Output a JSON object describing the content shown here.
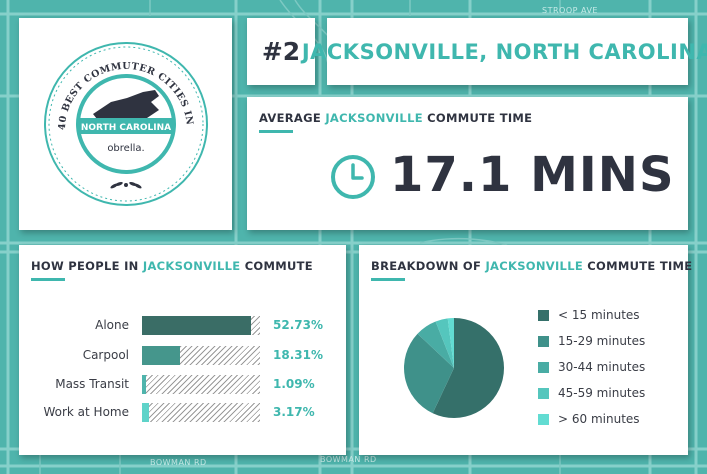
{
  "streets": {
    "stroop": "STROOP AVE",
    "bowman_1": "BOWMAN RD",
    "bowman_2": "BOWMAN RD"
  },
  "badge": {
    "arc_text": "40 BEST COMMUTER CITIES IN NORTH CAROLINA",
    "state": "NORTH CAROLINA",
    "brand": "obrella."
  },
  "header": {
    "rank": "#2",
    "city": "JACKSONVILLE, NORTH CAROLINA"
  },
  "average": {
    "prefix": "AVERAGE ",
    "city": "JACKSONVILLE",
    "suffix": " COMMUTE TIME",
    "value": "17.1 MINS",
    "icon": "clock-icon"
  },
  "commute": {
    "prefix": "HOW PEOPLE IN ",
    "city": "JACKSONVILLE",
    "suffix": " COMMUTE",
    "items": [
      {
        "label": "Alone",
        "pct": "52.73%",
        "value": 52.73,
        "color": "#3a6d66"
      },
      {
        "label": "Carpool",
        "pct": "18.31%",
        "value": 18.31,
        "color": "#45968c"
      },
      {
        "label": "Mass Transit",
        "pct": "1.09%",
        "value": 1.09,
        "color": "#4fb4ac"
      },
      {
        "label": "Work at Home",
        "pct": "3.17%",
        "value": 3.17,
        "color": "#5fd3c9"
      }
    ]
  },
  "breakdown": {
    "prefix": "BREAKDOWN OF ",
    "city": "JACKSONVILLE",
    "suffix": " COMMUTE TIME",
    "legend": [
      {
        "label": "< 15 minutes",
        "color": "#35706a"
      },
      {
        "label": "15-29 minutes",
        "color": "#3f918a"
      },
      {
        "label": "30-44 minutes",
        "color": "#49aca4"
      },
      {
        "label": "45-59 minutes",
        "color": "#55c6bd"
      },
      {
        "label": "> 60 minutes",
        "color": "#62dcd2"
      }
    ]
  },
  "chart_data": {
    "type": "pie",
    "title": "BREAKDOWN OF JACKSONVILLE COMMUTE TIME",
    "categories": [
      "< 15 minutes",
      "15-29 minutes",
      "30-44 minutes",
      "45-59 minutes",
      "> 60 minutes"
    ],
    "values": [
      57,
      30,
      7,
      4,
      2
    ],
    "colors": [
      "#35706a",
      "#3f918a",
      "#49aca4",
      "#55c6bd",
      "#62dcd2"
    ],
    "legend_position": "right"
  }
}
